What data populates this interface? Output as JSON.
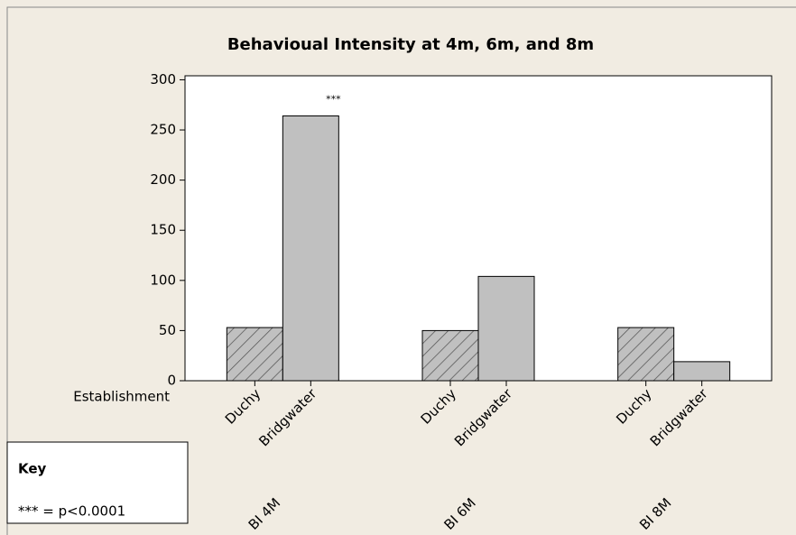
{
  "chart_data": {
    "type": "bar",
    "title": "Behavioual Intensity at 4m, 6m, and 8m",
    "x_label": "Establishment",
    "groups": [
      "BI 4M",
      "BI 6M",
      "BI 8M"
    ],
    "series": [
      {
        "name": "Duchy",
        "color": "#c0c0c0",
        "pattern": "hatch",
        "values": [
          53,
          50,
          53
        ]
      },
      {
        "name": "Bridgwater",
        "color": "#c0c0c0",
        "values": [
          264,
          104,
          19
        ]
      }
    ],
    "ylim": [
      0,
      304
    ],
    "yticks": [
      0,
      50,
      100,
      150,
      200,
      250,
      300
    ],
    "annotations": [
      {
        "text": "***"
      }
    ],
    "key": {
      "title": "Key",
      "text": "*** = p<0.0001"
    }
  }
}
